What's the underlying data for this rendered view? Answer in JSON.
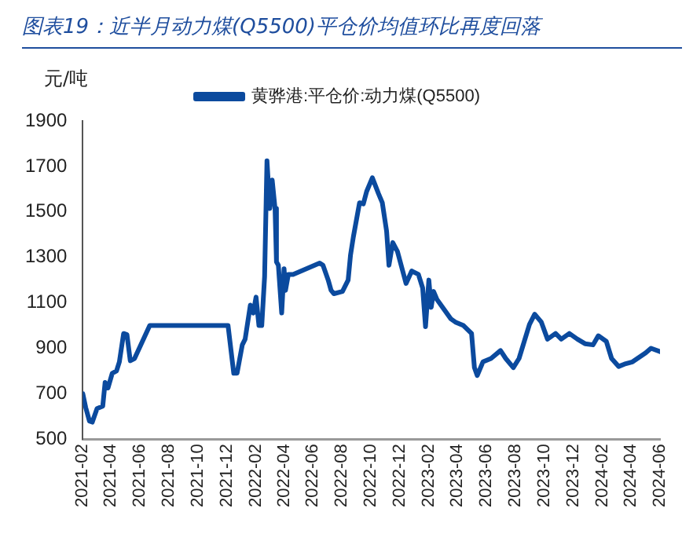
{
  "chart_data": {
    "type": "line",
    "title": "图表19：近半月动力煤(Q5500)平仓价均值环比再度回落",
    "ylabel": "元/吨",
    "legend": "top",
    "grid": false,
    "marker": "none",
    "line_style": "solid",
    "xlim": [
      "2021-02",
      "2024-06"
    ],
    "xticks": [
      "2021-02",
      "2021-04",
      "2021-06",
      "2021-08",
      "2021-10",
      "2021-12",
      "2022-02",
      "2022-04",
      "2022-06",
      "2022-08",
      "2022-10",
      "2022-12",
      "2023-02",
      "2023-04",
      "2023-06",
      "2023-08",
      "2023-10",
      "2023-12",
      "2024-02",
      "2024-04",
      "2024-06"
    ],
    "ylim": [
      500,
      1900
    ],
    "yticks": [
      500,
      700,
      900,
      1100,
      1300,
      1500,
      1700,
      1900
    ],
    "series": [
      {
        "name": "黄骅港:平仓价:动力煤(Q5500)",
        "color": "#0b4a9e",
        "x": [
          "2021-02-01",
          "2021-02-07",
          "2021-02-15",
          "2021-02-21",
          "2021-03-03",
          "2021-03-15",
          "2021-03-20",
          "2021-03-26",
          "2021-04-04",
          "2021-04-13",
          "2021-04-19",
          "2021-04-28",
          "2021-05-05",
          "2021-05-12",
          "2021-05-21",
          "2021-06-22",
          "2021-12-04",
          "2021-12-16",
          "2021-12-23",
          "2022-01-03",
          "2022-01-09",
          "2022-01-20",
          "2022-01-26",
          "2022-02-01",
          "2022-02-07",
          "2022-02-13",
          "2022-02-19",
          "2022-02-24",
          "2022-03-02",
          "2022-03-07",
          "2022-03-13",
          "2022-03-16",
          "2022-03-20",
          "2022-03-27",
          "2022-04-01",
          "2022-04-04",
          "2022-04-10",
          "2022-04-20",
          "2022-06-15",
          "2022-06-22",
          "2022-07-03",
          "2022-07-09",
          "2022-07-15",
          "2022-08-02",
          "2022-08-14",
          "2022-08-19",
          "2022-08-25",
          "2022-09-07",
          "2022-09-15",
          "2022-09-22",
          "2022-10-04",
          "2022-10-17",
          "2022-10-25",
          "2022-11-03",
          "2022-11-08",
          "2022-11-16",
          "2022-11-26",
          "2022-12-14",
          "2022-12-26",
          "2023-01-09",
          "2023-01-18",
          "2023-01-24",
          "2023-01-31",
          "2023-02-05",
          "2023-02-10",
          "2023-02-17",
          "2023-03-18",
          "2023-03-28",
          "2023-04-14",
          "2023-05-01",
          "2023-05-07",
          "2023-05-13",
          "2023-05-25",
          "2023-06-11",
          "2023-07-01",
          "2023-07-12",
          "2023-07-28",
          "2023-08-09",
          "2023-08-31",
          "2023-09-11",
          "2023-09-25",
          "2023-10-08",
          "2023-10-25",
          "2023-11-06",
          "2023-11-23",
          "2023-12-10",
          "2023-12-26",
          "2024-01-12",
          "2024-01-23",
          "2024-02-09",
          "2024-02-20",
          "2024-03-06",
          "2024-03-18",
          "2024-04-04",
          "2024-05-02",
          "2024-05-13",
          "2024-06-01"
        ],
        "values": [
          700,
          640,
          580,
          575,
          635,
          645,
          750,
          725,
          790,
          800,
          840,
          965,
          960,
          845,
          855,
          1000,
          1000,
          790,
          790,
          915,
          940,
          1090,
          1055,
          1125,
          1000,
          1000,
          1215,
          1725,
          1515,
          1640,
          1515,
          1280,
          1265,
          1055,
          1250,
          1155,
          1225,
          1225,
          1275,
          1265,
          1200,
          1155,
          1140,
          1150,
          1200,
          1310,
          1390,
          1540,
          1535,
          1590,
          1650,
          1580,
          1540,
          1415,
          1265,
          1365,
          1325,
          1185,
          1240,
          1225,
          1165,
          995,
          1200,
          1080,
          1150,
          1115,
          1030,
          1015,
          1000,
          965,
          815,
          780,
          840,
          855,
          890,
          855,
          815,
          855,
          1005,
          1050,
          1015,
          940,
          965,
          940,
          965,
          940,
          920,
          915,
          955,
          930,
          855,
          820,
          830,
          840,
          880,
          900,
          885
        ]
      }
    ]
  }
}
